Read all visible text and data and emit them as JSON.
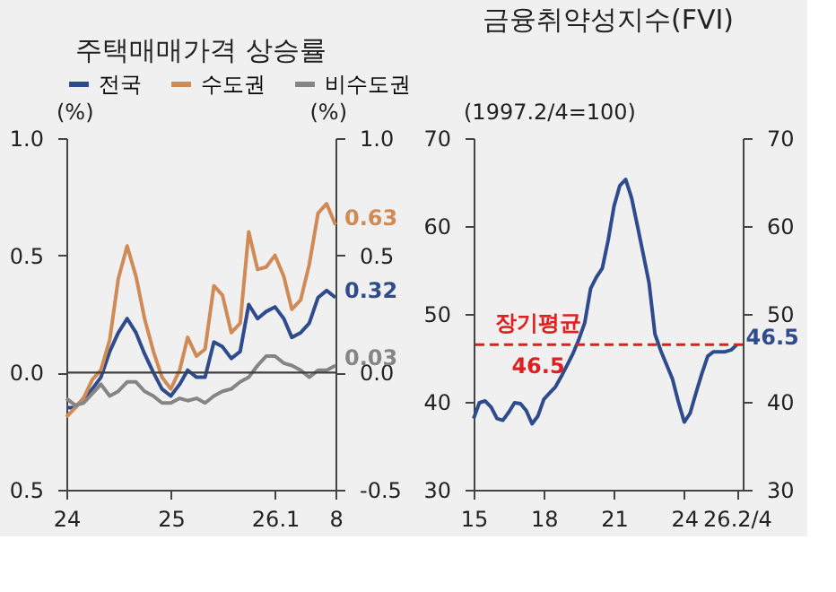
{
  "chart_data": [
    {
      "type": "line",
      "title": "주택매매가격 상승률",
      "ylabel": "(%)",
      "y2label": "(%)",
      "x": [
        "2024-01",
        "2024-02",
        "2024-03",
        "2024-04",
        "2024-05",
        "2024-06",
        "2024-07",
        "2024-08",
        "2024-09",
        "2024-10",
        "2024-11",
        "2024-12",
        "2025-01",
        "2025-02",
        "2025-03",
        "2025-04",
        "2025-05",
        "2025-06",
        "2025-07",
        "2025-08",
        "2025-09",
        "2025-10",
        "2025-11",
        "2025-12",
        "2026-01",
        "2026-02",
        "2026-03",
        "2026-04",
        "2026-05",
        "2026-06",
        "2026-07",
        "2026-08"
      ],
      "series": [
        {
          "name": "전국",
          "color": "#2e4b8e",
          "values": [
            -0.15,
            -0.15,
            -0.11,
            -0.07,
            -0.02,
            0.09,
            0.17,
            0.23,
            0.17,
            0.08,
            0.0,
            -0.07,
            -0.1,
            -0.05,
            0.01,
            -0.02,
            -0.02,
            0.13,
            0.11,
            0.06,
            0.09,
            0.29,
            0.23,
            0.26,
            0.28,
            0.23,
            0.15,
            0.17,
            0.21,
            0.32,
            0.35,
            0.32
          ]
        },
        {
          "name": "수도권",
          "color": "#d08a55",
          "values": [
            -0.19,
            -0.15,
            -0.11,
            -0.03,
            0.01,
            0.14,
            0.4,
            0.54,
            0.41,
            0.23,
            0.09,
            -0.02,
            -0.07,
            0.01,
            0.15,
            0.07,
            0.1,
            0.37,
            0.33,
            0.17,
            0.21,
            0.6,
            0.44,
            0.45,
            0.5,
            0.41,
            0.27,
            0.31,
            0.46,
            0.68,
            0.72,
            0.63
          ]
        },
        {
          "name": "비수도권",
          "color": "#858585",
          "values": [
            -0.11,
            -0.14,
            -0.13,
            -0.09,
            -0.05,
            -0.1,
            -0.08,
            -0.04,
            -0.04,
            -0.08,
            -0.1,
            -0.13,
            -0.13,
            -0.11,
            -0.12,
            -0.11,
            -0.13,
            -0.1,
            -0.08,
            -0.07,
            -0.04,
            -0.02,
            0.03,
            0.07,
            0.07,
            0.04,
            0.03,
            0.01,
            -0.02,
            0.01,
            0.01,
            0.03
          ]
        }
      ],
      "xlim": [
        "2024-01",
        "2026-08"
      ],
      "xticks": [
        {
          "value": "2024-01",
          "label": "24"
        },
        {
          "value": "2025-01",
          "label": "25"
        },
        {
          "value": "2026-01",
          "label": "26.1"
        },
        {
          "value": "2026-08",
          "label": "8"
        }
      ],
      "ylim": [
        -0.5,
        1.0
      ],
      "yticks": [
        {
          "value": 1,
          "label": "1.0"
        },
        0.5,
        {
          "value": 0,
          "label": "0.0"
        },
        {
          "value": -0.5,
          "label": "0.5"
        }
      ],
      "y2lim": [
        -0.5,
        1.0
      ],
      "y2ticks": [
        {
          "value": 1,
          "label": "1.0"
        },
        0.5,
        {
          "value": 0,
          "label": "0.0"
        },
        -0.5
      ],
      "ref_lines": [
        {
          "axis": "y",
          "value": 0,
          "color": "#404040"
        }
      ],
      "annotations": [
        {
          "text": "0.32",
          "x": "2026-08",
          "y": 0.32
        },
        {
          "text": "0.63",
          "x": "2026-08",
          "y": 0.63
        },
        {
          "text": "0.03",
          "x": "2026-08",
          "y": 0.03
        }
      ],
      "legend": "top",
      "grid": false,
      "line_style": "solid"
    },
    {
      "type": "line",
      "title": "금융취약성지수(FVI)",
      "ylabel": "(1997.2/4=100)",
      "x": [
        "2015-01",
        "2015-04",
        "2015-07",
        "2015-10",
        "2016-01",
        "2016-04",
        "2016-07",
        "2016-10",
        "2017-01",
        "2017-04",
        "2017-07",
        "2017-10",
        "2018-01",
        "2018-04",
        "2018-07",
        "2018-10",
        "2019-01",
        "2019-04",
        "2019-07",
        "2019-10",
        "2020-01",
        "2020-04",
        "2020-07",
        "2020-10",
        "2021-01",
        "2021-04",
        "2021-07",
        "2021-10",
        "2022-01",
        "2022-04",
        "2022-07",
        "2022-10",
        "2023-01",
        "2023-04",
        "2023-07",
        "2023-10",
        "2024-01",
        "2024-04",
        "2024-07",
        "2024-10",
        "2025-01",
        "2025-04",
        "2025-07",
        "2025-10",
        "2026-01",
        "2026-04"
      ],
      "series": [
        {
          "color": "#2e4b8e",
          "values": [
            38.1,
            39.9,
            40.1,
            39.4,
            38.1,
            37.9,
            38.8,
            39.9,
            39.8,
            39.0,
            37.5,
            38.4,
            40.3,
            41.0,
            41.7,
            42.9,
            44.2,
            45.5,
            47.1,
            49.0,
            52.9,
            54.2,
            55.2,
            58.4,
            62.3,
            64.6,
            65.3,
            63.2,
            60.0,
            56.8,
            53.5,
            47.7,
            45.8,
            44.2,
            42.6,
            40.0,
            37.7,
            38.7,
            41.0,
            43.2,
            45.2,
            45.7,
            45.7,
            45.7,
            45.9,
            46.5
          ]
        }
      ],
      "xlim": [
        "2015-01",
        "2026-07"
      ],
      "xticks": [
        {
          "value": "2015-01",
          "label": "15"
        },
        {
          "value": "2018-01",
          "label": "18"
        },
        {
          "value": "2021-01",
          "label": "21"
        },
        {
          "value": "2024-01",
          "label": "24"
        },
        {
          "value": "2026-04",
          "label": "26.2/4"
        }
      ],
      "ylim": [
        30,
        70
      ],
      "yticks": [
        30,
        40,
        50,
        60,
        70
      ],
      "y2lim": [
        30,
        70
      ],
      "y2ticks": [
        30,
        40,
        50,
        60,
        70
      ],
      "ref_lines": [
        {
          "axis": "y",
          "value": 46.5,
          "label": "장기평균",
          "color": "#e02020",
          "line_style": "dashed"
        }
      ],
      "annotations": [
        {
          "text": "46.5",
          "x": "2026-04",
          "y": 46.5
        }
      ],
      "grid": false,
      "line_style": "solid"
    }
  ]
}
